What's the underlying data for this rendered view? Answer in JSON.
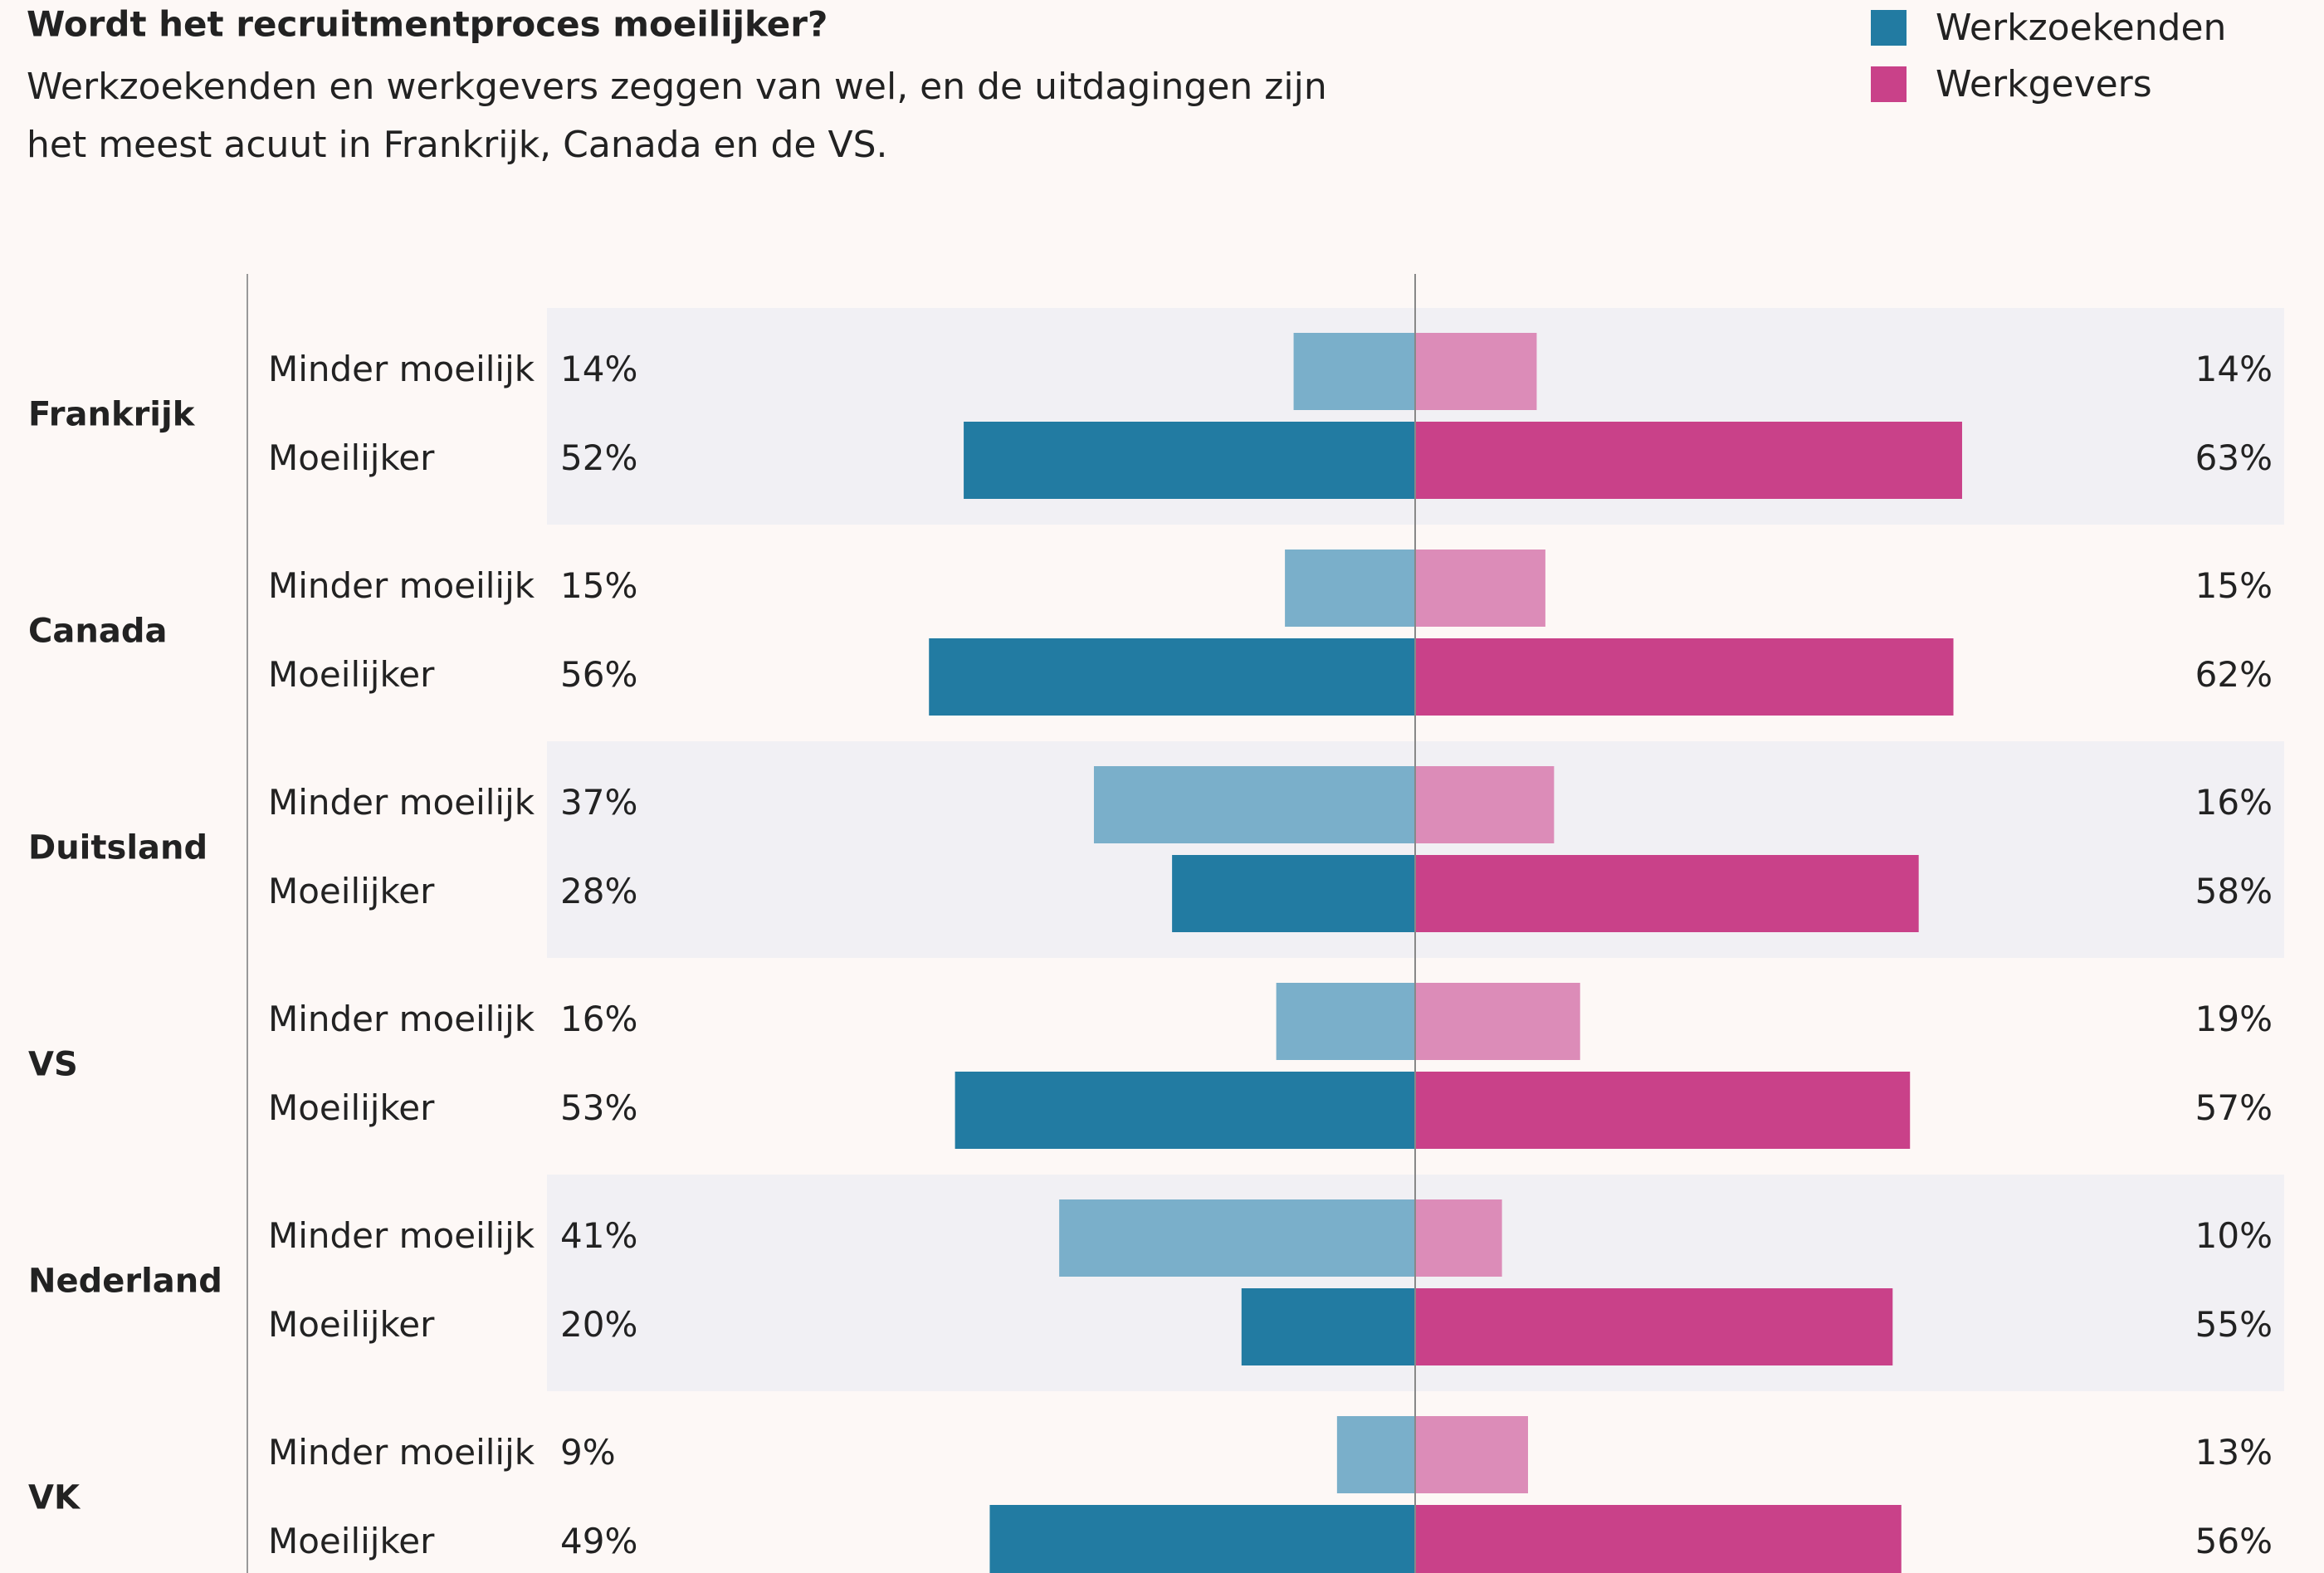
{
  "chart_data": {
    "type": "butterfly",
    "title": "Wordt het recruitmentproces moeilijker?",
    "subtitle": [
      "Werkzoekenden en werkgevers zeggen van wel, en de uitdagingen zijn",
      "het meest acuut in Frankrijk, Canada en de VS."
    ],
    "groups": [
      "Frankrijk",
      "Canada",
      "Duitsland",
      "VS",
      "Nederland",
      "VK"
    ],
    "categories": [
      "Minder moeilijk",
      "Moeilijker"
    ],
    "xlim": [
      0,
      100
    ],
    "series": [
      {
        "name": "Werkzoekenden",
        "color": "#227ba2",
        "colors": [
          "#7aafca",
          "#227ba2"
        ],
        "side": "left",
        "values": [
          [
            14,
            52
          ],
          [
            15,
            56
          ],
          [
            37,
            28
          ],
          [
            16,
            53
          ],
          [
            41,
            20
          ],
          [
            9,
            49
          ]
        ],
        "value_labels": [
          [
            "14%",
            "52%"
          ],
          [
            "15%",
            "56%"
          ],
          [
            "37%",
            "28%"
          ],
          [
            "16%",
            "53%"
          ],
          [
            "41%",
            "20%"
          ],
          [
            "9%",
            "49%"
          ]
        ]
      },
      {
        "name": "Werkgevers",
        "color": "#c94189",
        "colors": [
          "#dc8cb8",
          "#c94189"
        ],
        "side": "right",
        "values": [
          [
            14,
            63
          ],
          [
            15,
            62
          ],
          [
            16,
            58
          ],
          [
            19,
            57
          ],
          [
            10,
            55
          ],
          [
            13,
            56
          ]
        ],
        "value_labels": [
          [
            "14%",
            "63%"
          ],
          [
            "15%",
            "62%"
          ],
          [
            "16%",
            "58%"
          ],
          [
            "19%",
            "57%"
          ],
          [
            "10%",
            "55%"
          ],
          [
            "13%",
            "56%"
          ]
        ]
      }
    ]
  }
}
